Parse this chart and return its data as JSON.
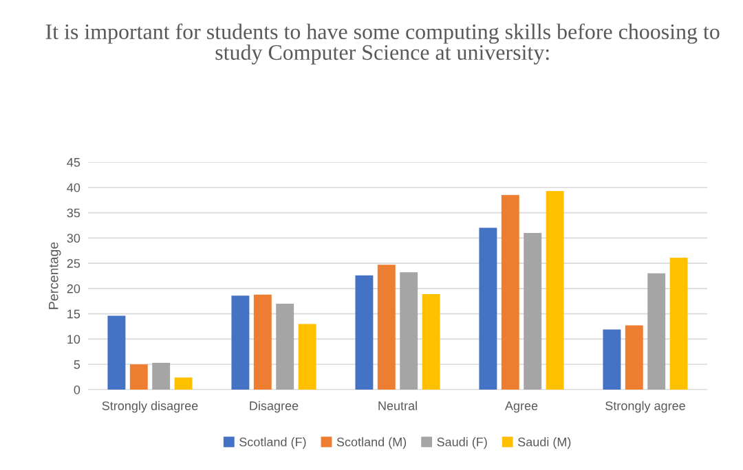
{
  "chart_data": {
    "type": "bar",
    "title": "It is important for students to have some computing skills before choosing to study Computer Science at university:",
    "ylabel": "Percentage",
    "categories": [
      "Strongly disagree",
      "Disagree",
      "Neutral",
      "Agree",
      "Strongly agree"
    ],
    "series": [
      {
        "name": "Scotland (F)",
        "color": "#4472c4",
        "values": [
          14.6,
          18.6,
          22.6,
          32.0,
          11.9
        ]
      },
      {
        "name": "Scotland (M)",
        "color": "#ed7d31",
        "values": [
          5.0,
          18.8,
          24.7,
          38.5,
          12.7
        ]
      },
      {
        "name": "Saudi (F)",
        "color": "#a5a5a5",
        "values": [
          5.3,
          17.0,
          23.2,
          31.0,
          23.0
        ]
      },
      {
        "name": "Saudi (M)",
        "color": "#ffc000",
        "values": [
          2.4,
          13.0,
          18.9,
          39.3,
          26.1
        ]
      }
    ],
    "ylim": [
      0,
      45
    ],
    "yticks": [
      0,
      5,
      10,
      15,
      20,
      25,
      30,
      35,
      40,
      45
    ],
    "grid": "y",
    "legend": "bottom"
  }
}
